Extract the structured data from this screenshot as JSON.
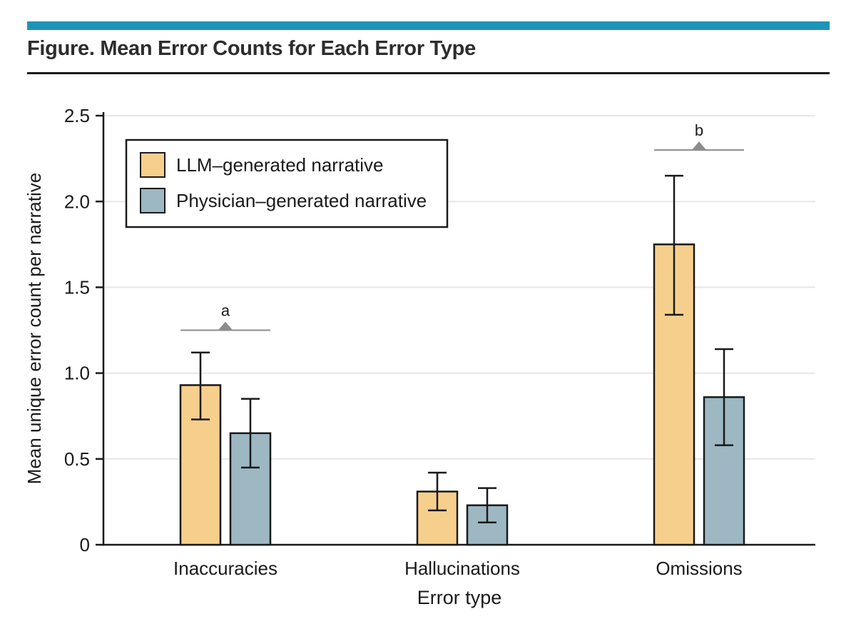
{
  "header": {
    "title": "Figure. Mean Error Counts for Each Error Type",
    "accent_color": "#1E93B8",
    "rule_color": "#1a1a1a"
  },
  "chart_data": {
    "type": "bar",
    "title": "Figure. Mean Error Counts for Each Error Type",
    "categories": [
      "Inaccuracies",
      "Hallucinations",
      "Omissions"
    ],
    "series": [
      {
        "name": "LLM–generated narrative",
        "color": "#F7CF8D",
        "values": [
          0.93,
          0.31,
          1.75
        ],
        "error_low": [
          0.73,
          0.2,
          1.34
        ],
        "error_high": [
          1.12,
          0.42,
          2.15
        ]
      },
      {
        "name": "Physician–generated narrative",
        "color": "#9DB8C3",
        "values": [
          0.65,
          0.23,
          0.86
        ],
        "error_low": [
          0.45,
          0.13,
          0.58
        ],
        "error_high": [
          0.85,
          0.33,
          1.14
        ]
      }
    ],
    "xlabel": "Error type",
    "ylabel": "Mean unique error count per narrative",
    "ylim": [
      0,
      2.5
    ],
    "yticks": [
      0,
      0.5,
      1.0,
      1.5,
      2.0,
      2.5
    ],
    "ytick_labels": [
      "0",
      "0.5",
      "1.0",
      "1.5",
      "2.0",
      "2.5"
    ],
    "grid": true,
    "grid_color": "#E7E7E7",
    "axis_color": "#1a1a1a",
    "bar_outline_color": "#1a1a1a",
    "legend_position": "upper-left",
    "annotation_color": "#8C8C8C",
    "annotations": [
      {
        "label": "a",
        "category_index": 0,
        "y": 1.25
      },
      {
        "label": "b",
        "category_index": 2,
        "y": 2.3
      }
    ]
  }
}
